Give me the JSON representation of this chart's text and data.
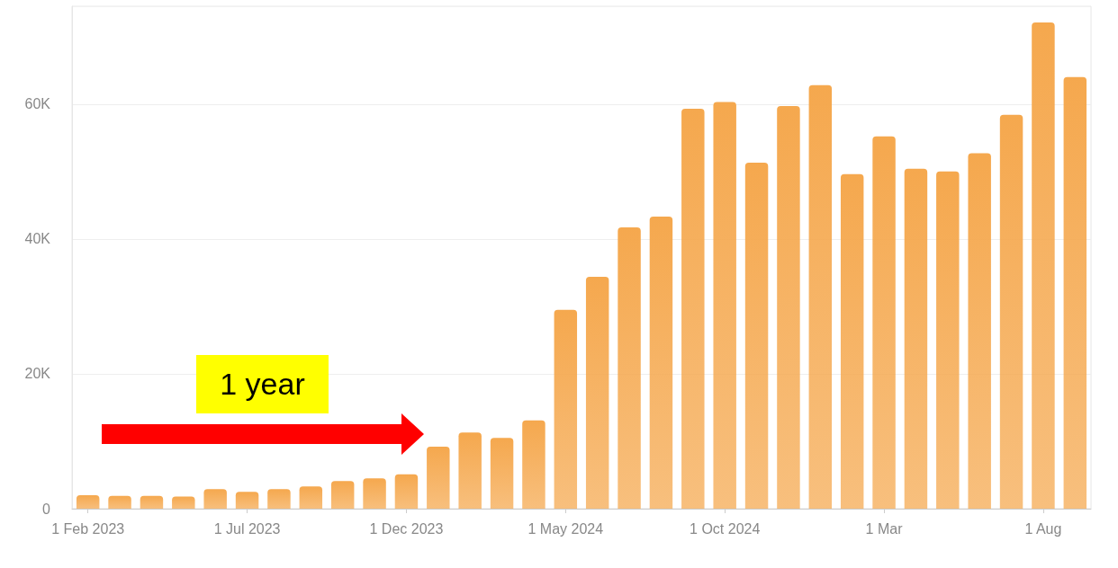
{
  "chart_data": {
    "type": "bar",
    "categories": [
      "1 Feb 2023",
      null,
      null,
      null,
      null,
      "1 Jul 2023",
      null,
      null,
      null,
      null,
      "1 Dec 2023",
      null,
      null,
      null,
      null,
      "1 May 2024",
      null,
      null,
      null,
      null,
      "1 Oct 2024",
      null,
      null,
      null,
      null,
      "1 Mar",
      null,
      null,
      null,
      null,
      "1 Aug",
      null
    ],
    "values": [
      2000,
      1900,
      1900,
      1800,
      2900,
      2500,
      2900,
      3300,
      4100,
      4500,
      5100,
      9200,
      11300,
      10500,
      13100,
      29500,
      34400,
      41700,
      43300,
      59300,
      60300,
      51300,
      59700,
      62800,
      49600,
      55200,
      50400,
      50000,
      52700,
      58400,
      72100,
      64000
    ],
    "color": "#f5a84e",
    "ylim": [
      0,
      74500
    ],
    "yticks": [
      0,
      {
        "value": 20000,
        "label": "20K"
      },
      {
        "value": 40000,
        "label": "40K"
      },
      {
        "value": 60000,
        "label": "60K"
      }
    ],
    "grid": "y",
    "annotations": [
      "1 year"
    ]
  }
}
